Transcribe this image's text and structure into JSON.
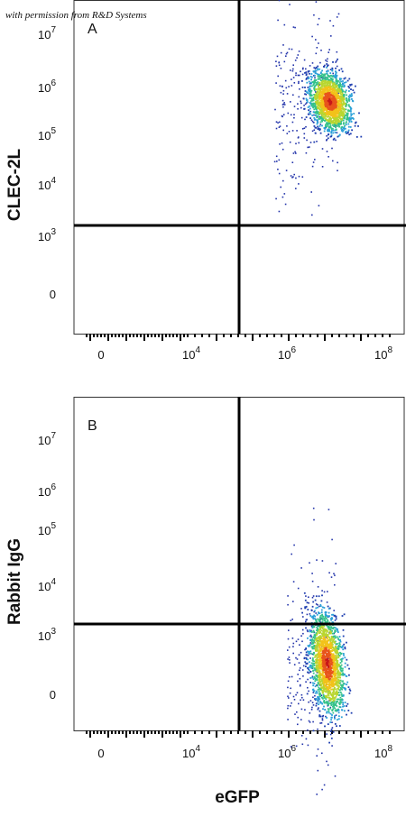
{
  "watermark": "with permission from R&D Systems",
  "x_axis_label": "eGFP",
  "panels": [
    {
      "letter": "A",
      "y_axis_label": "CLEC-2L",
      "y_ticks": [
        {
          "base": "10",
          "exp": "7"
        },
        {
          "base": "10",
          "exp": "6"
        },
        {
          "base": "10",
          "exp": "5"
        },
        {
          "base": "10",
          "exp": "4"
        },
        {
          "base": "10",
          "exp": "3"
        },
        {
          "base": "0"
        }
      ],
      "x_ticks": [
        {
          "base": "0"
        },
        {
          "base": "10",
          "exp": "4"
        },
        {
          "base": "10",
          "exp": "6"
        },
        {
          "base": "10",
          "exp": "8"
        }
      ]
    },
    {
      "letter": "B",
      "y_axis_label": "Rabbit IgG",
      "y_ticks": [
        {
          "base": "10",
          "exp": "7"
        },
        {
          "base": "10",
          "exp": "6"
        },
        {
          "base": "10",
          "exp": "5"
        },
        {
          "base": "10",
          "exp": "4"
        },
        {
          "base": "10",
          "exp": "3"
        },
        {
          "base": "0"
        }
      ],
      "x_ticks": [
        {
          "base": "0"
        },
        {
          "base": "10",
          "exp": "4"
        },
        {
          "base": "10",
          "exp": "6"
        },
        {
          "base": "10",
          "exp": "8"
        }
      ]
    }
  ]
}
